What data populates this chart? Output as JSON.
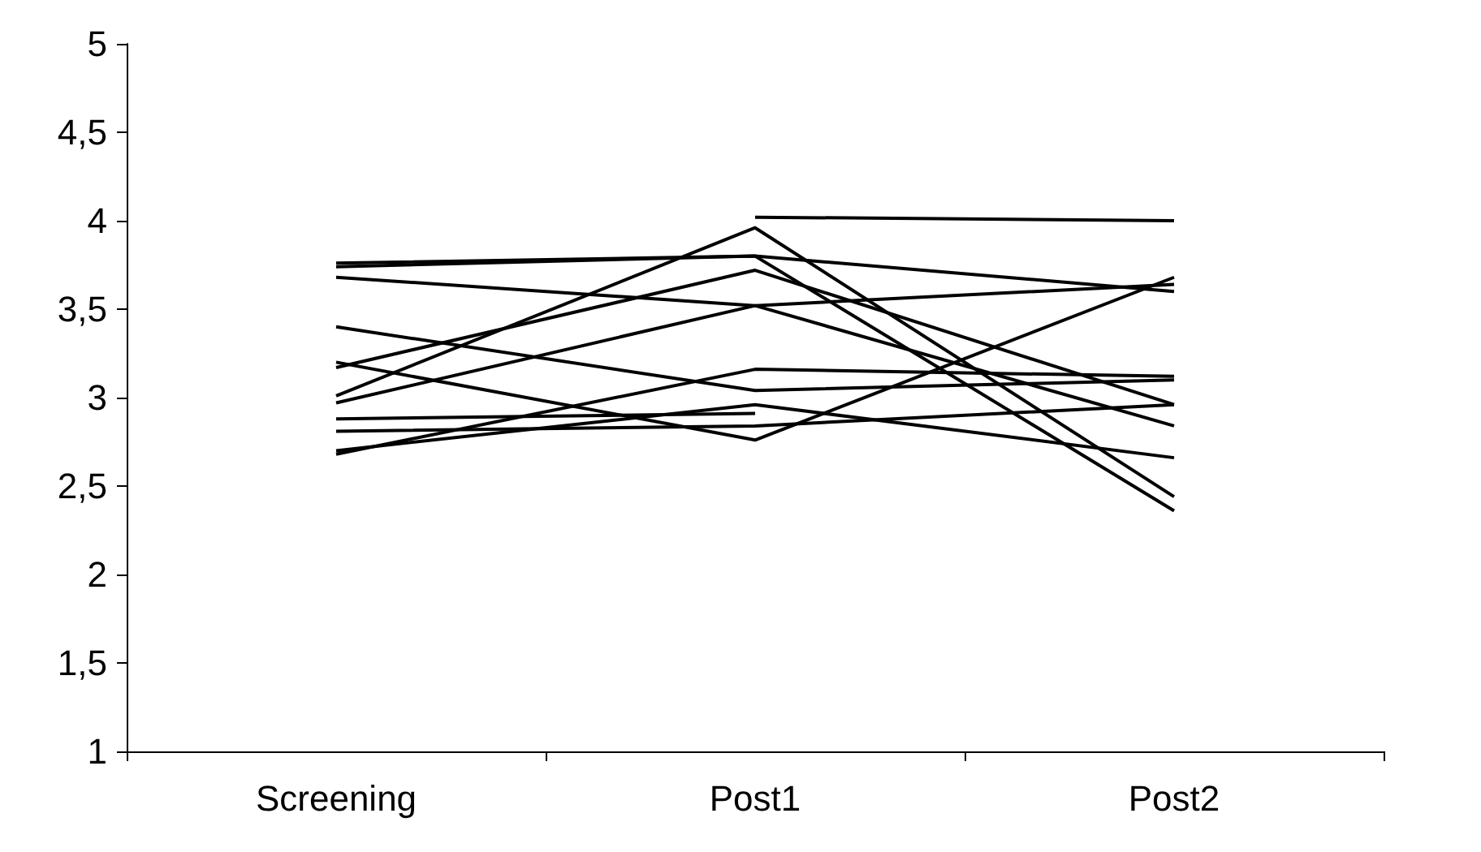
{
  "chart_data": {
    "type": "line",
    "categories": [
      "Screening",
      "Post1",
      "Post2"
    ],
    "ylim": [
      1,
      5
    ],
    "yticks": [
      1,
      {
        "value": 1.5,
        "label": "1,5"
      },
      2,
      {
        "value": 2.5,
        "label": "2,5"
      },
      3,
      {
        "value": 3.5,
        "label": "3,5"
      },
      4,
      {
        "value": 4.5,
        "label": "4,5"
      },
      5
    ],
    "grid": false,
    "marker": "none",
    "line_style": "solid",
    "series": [
      {
        "color": "#000000",
        "values": [
          3.76,
          3.8,
          3.6
        ]
      },
      {
        "color": "#000000",
        "values": [
          3.74,
          3.8,
          2.36
        ]
      },
      {
        "color": "#000000",
        "values": [
          3.68,
          3.52,
          3.64
        ]
      },
      {
        "color": "#000000",
        "values": [
          3.4,
          3.04,
          3.1
        ]
      },
      {
        "color": "#000000",
        "values": [
          3.2,
          2.76,
          3.68
        ]
      },
      {
        "color": "#000000",
        "values": [
          3.17,
          3.72,
          2.96
        ]
      },
      {
        "color": "#000000",
        "values": [
          3.01,
          3.96,
          2.44
        ]
      },
      {
        "color": "#000000",
        "values": [
          2.97,
          3.52,
          2.84
        ]
      },
      {
        "color": "#000000",
        "values": [
          2.88,
          2.91,
          null
        ]
      },
      {
        "color": "#000000",
        "values": [
          2.81,
          2.84,
          2.96
        ]
      },
      {
        "color": "#000000",
        "values": [
          2.7,
          2.96,
          2.66
        ]
      },
      {
        "color": "#000000",
        "values": [
          2.68,
          3.16,
          3.12
        ]
      },
      {
        "color": "#000000",
        "values": [
          null,
          4.02,
          4.0
        ]
      }
    ]
  }
}
